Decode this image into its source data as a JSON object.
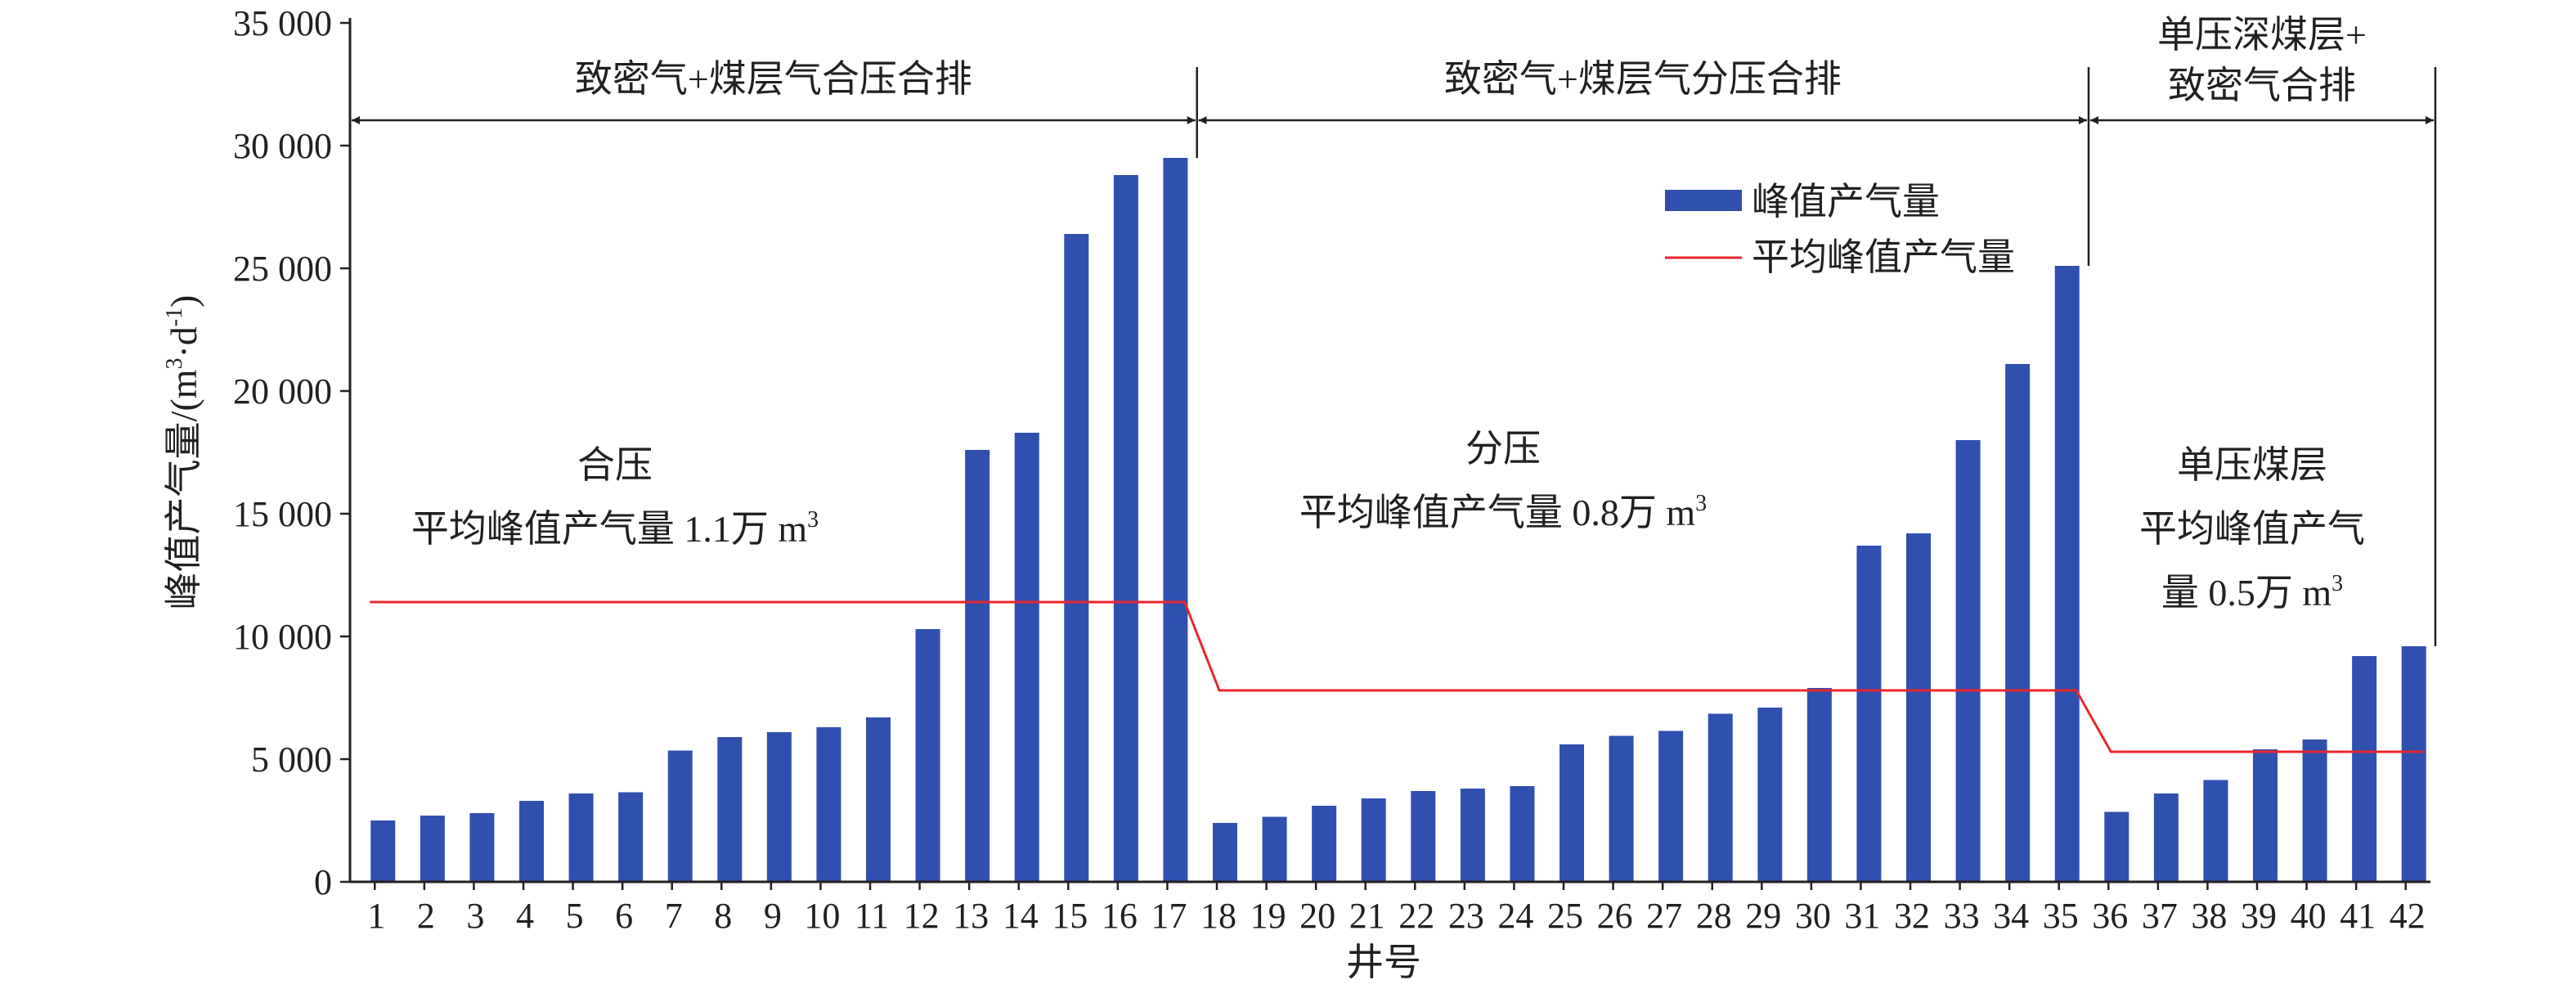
{
  "chart_data": {
    "type": "bar",
    "xlabel": "井号",
    "ylabel": "峰值产气量/(m³·d⁻¹)",
    "ylim": [
      0,
      35000
    ],
    "yticks": [
      0,
      5000,
      10000,
      15000,
      20000,
      25000,
      30000,
      35000
    ],
    "ytick_labels": [
      "0",
      "5 000",
      "10 000",
      "15 000",
      "20 000",
      "25 000",
      "30 000",
      "35 000"
    ],
    "categories": [
      "1",
      "2",
      "3",
      "4",
      "5",
      "6",
      "7",
      "8",
      "9",
      "10",
      "11",
      "12",
      "13",
      "14",
      "15",
      "16",
      "17",
      "18",
      "19",
      "20",
      "21",
      "22",
      "23",
      "24",
      "25",
      "26",
      "27",
      "28",
      "29",
      "30",
      "31",
      "32",
      "33",
      "34",
      "35",
      "36",
      "37",
      "38",
      "39",
      "40",
      "41",
      "42"
    ],
    "series": [
      {
        "name": "峰值产气量",
        "kind": "bar",
        "color": "#3050b0",
        "values": [
          2500,
          2700,
          2800,
          3300,
          3600,
          3650,
          5350,
          5900,
          6100,
          6300,
          6700,
          10300,
          17600,
          18300,
          26400,
          28800,
          29500,
          2400,
          2650,
          3100,
          3400,
          3700,
          3800,
          3900,
          5600,
          5950,
          6150,
          6850,
          7100,
          7900,
          13700,
          14200,
          18000,
          21100,
          25100,
          2850,
          3600,
          4150,
          5400,
          5800,
          9200,
          9600
        ]
      },
      {
        "name": "平均峰值产气量",
        "kind": "line",
        "color": "#e8262d",
        "segments": [
          {
            "from": 1,
            "to": 17,
            "value": 11400
          },
          {
            "from": 18,
            "to": 35,
            "value": 7800
          },
          {
            "from": 36,
            "to": 42,
            "value": 5300
          }
        ]
      }
    ],
    "regions": [
      {
        "label_lines": [
          "致密气+煤层气合压合排"
        ],
        "from": 1,
        "to": 17
      },
      {
        "label_lines": [
          "致密气+煤层气分压合排"
        ],
        "from": 18,
        "to": 35
      },
      {
        "label_lines": [
          "单压深煤层+",
          "致密气合排"
        ],
        "from": 36,
        "to": 42
      }
    ],
    "annotations": [
      {
        "lines": [
          "合压",
          "平均峰值产气量 1.1万 m³"
        ]
      },
      {
        "lines": [
          "分压",
          "平均峰值产气量 0.8万 m³"
        ]
      },
      {
        "lines": [
          "单压煤层",
          "平均峰值产气",
          "量 0.5万 m³"
        ]
      }
    ],
    "legend": {
      "position": "top-right",
      "entries": [
        "峰值产气量",
        "平均峰值产气量"
      ]
    },
    "grid": false
  }
}
